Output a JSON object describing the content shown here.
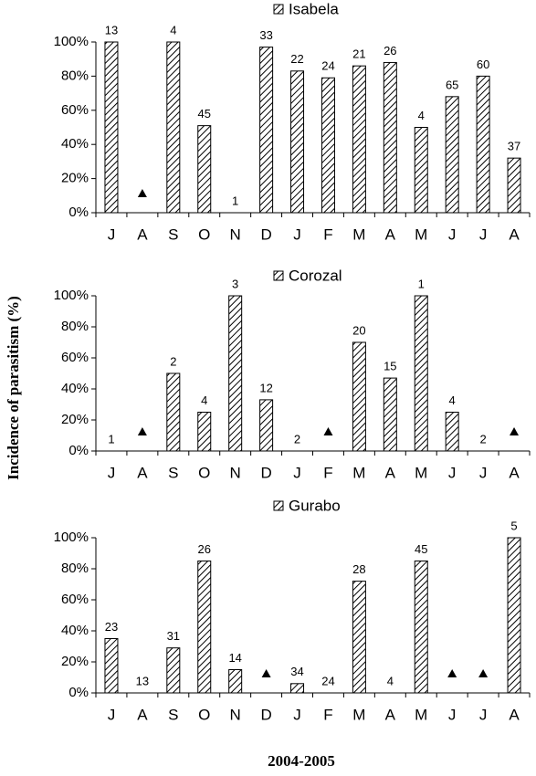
{
  "ylabel": "Incidence of parasitism (%)",
  "xlabel": "2004-2005",
  "chart_data": [
    {
      "type": "bar",
      "fill": "hatch",
      "marker": "triangle",
      "categories": [
        "J",
        "A",
        "S",
        "O",
        "N",
        "D",
        "J",
        "F",
        "M",
        "A",
        "M",
        "J",
        "J",
        "A"
      ],
      "series": [
        {
          "name": "Isabela",
          "color": "#000000",
          "values": [
            100,
            null,
            100,
            51,
            0,
            97,
            83,
            79,
            86,
            88,
            50,
            68,
            80,
            32
          ],
          "sample_sizes": [
            13,
            null,
            4,
            45,
            1,
            33,
            22,
            24,
            21,
            26,
            4,
            65,
            60,
            37
          ]
        }
      ],
      "ylim": [
        0,
        100
      ],
      "yticks": [
        {
          "value": 0,
          "label": "0%"
        },
        {
          "value": 20,
          "label": "20%"
        },
        {
          "value": 40,
          "label": "40%"
        },
        {
          "value": 60,
          "label": "60%"
        },
        {
          "value": 80,
          "label": "80%"
        },
        {
          "value": 100,
          "label": "100%"
        }
      ]
    },
    {
      "type": "bar",
      "fill": "hatch",
      "marker": "triangle",
      "categories": [
        "J",
        "A",
        "S",
        "O",
        "N",
        "D",
        "J",
        "F",
        "M",
        "A",
        "M",
        "J",
        "J",
        "A"
      ],
      "series": [
        {
          "name": "Corozal",
          "color": "#000000",
          "values": [
            0,
            null,
            50,
            25,
            100,
            33,
            0,
            null,
            70,
            47,
            100,
            25,
            0,
            null
          ],
          "sample_sizes": [
            1,
            null,
            2,
            4,
            3,
            12,
            2,
            null,
            20,
            15,
            1,
            4,
            2,
            null
          ]
        }
      ],
      "ylim": [
        0,
        100
      ],
      "yticks": [
        {
          "value": 0,
          "label": "0%"
        },
        {
          "value": 20,
          "label": "20%"
        },
        {
          "value": 40,
          "label": "40%"
        },
        {
          "value": 60,
          "label": "60%"
        },
        {
          "value": 80,
          "label": "80%"
        },
        {
          "value": 100,
          "label": "100%"
        }
      ]
    },
    {
      "type": "bar",
      "fill": "hatch",
      "marker": "triangle",
      "categories": [
        "J",
        "A",
        "S",
        "O",
        "N",
        "D",
        "J",
        "F",
        "M",
        "A",
        "M",
        "J",
        "J",
        "A"
      ],
      "series": [
        {
          "name": "Gurabo",
          "color": "#000000",
          "values": [
            35,
            0,
            29,
            85,
            15,
            null,
            6,
            0,
            72,
            0,
            85,
            null,
            null,
            100
          ],
          "sample_sizes": [
            23,
            13,
            31,
            26,
            14,
            null,
            34,
            24,
            28,
            4,
            45,
            null,
            null,
            5
          ]
        }
      ],
      "ylim": [
        0,
        100
      ],
      "yticks": [
        {
          "value": 0,
          "label": "0%"
        },
        {
          "value": 20,
          "label": "20%"
        },
        {
          "value": 40,
          "label": "40%"
        },
        {
          "value": 60,
          "label": "60%"
        },
        {
          "value": 80,
          "label": "80%"
        },
        {
          "value": 100,
          "label": "100%"
        }
      ]
    }
  ]
}
